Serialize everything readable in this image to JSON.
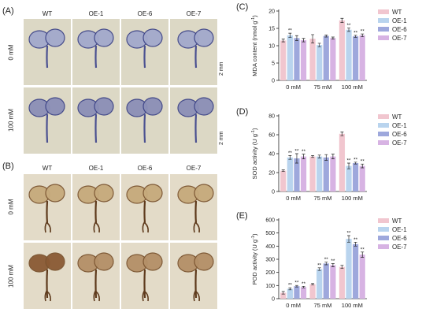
{
  "panels": {
    "A": {
      "label": "(A)",
      "columns": [
        "WT",
        "OE-1",
        "OE-6",
        "OE-7"
      ],
      "rows": [
        "0 mM",
        "100 mM"
      ],
      "scale": "2 mm",
      "stain": "blue"
    },
    "B": {
      "label": "(B)",
      "columns": [
        "WT",
        "OE-1",
        "OE-6",
        "OE-7"
      ],
      "rows": [
        "0 mM",
        "100 mM"
      ],
      "scale": "2 mm",
      "stain": "brown"
    }
  },
  "colors": {
    "WT": "#f1c6cf",
    "OE-1": "#b9d4ee",
    "OE-6": "#9ea8dc",
    "OE-7": "#d7b3e3"
  },
  "chart_data": [
    {
      "id": "C",
      "panel_label": "(C)",
      "type": "bar",
      "categories": [
        "0 mM",
        "75 mM",
        "100 mM"
      ],
      "ylabel": "MDA content (nmol g",
      "ylabel_sup": "-1",
      "ylabel_end": ")",
      "ylim": [
        0,
        20
      ],
      "yticks": [
        0,
        5,
        10,
        15,
        20
      ],
      "legend": "top-right",
      "series": [
        {
          "name": "WT",
          "values": [
            11.5,
            12.0,
            17.3
          ],
          "errors": [
            0.4,
            1.2,
            0.6
          ],
          "sig": [
            "",
            "",
            ""
          ]
        },
        {
          "name": "OE-1",
          "values": [
            13.0,
            10.2,
            14.6
          ],
          "errors": [
            0.6,
            0.5,
            0.5
          ],
          "sig": [
            "**",
            "",
            "**"
          ]
        },
        {
          "name": "OE-6",
          "values": [
            12.2,
            12.8,
            12.7
          ],
          "errors": [
            0.7,
            0.3,
            0.3
          ],
          "sig": [
            "",
            "",
            "**"
          ]
        },
        {
          "name": "OE-7",
          "values": [
            11.6,
            12.2,
            13.0
          ],
          "errors": [
            0.5,
            0.3,
            0.4
          ],
          "sig": [
            "",
            "",
            "**"
          ]
        }
      ]
    },
    {
      "id": "D",
      "panel_label": "(D)",
      "type": "bar",
      "categories": [
        "0 mM",
        "75 mM",
        "100 mM"
      ],
      "ylabel": "SOD activity (U g",
      "ylabel_sup": "-1",
      "ylabel_end": ")",
      "ylim": [
        0,
        80
      ],
      "yticks": [
        0,
        20,
        40,
        60,
        80
      ],
      "legend": "top-right",
      "series": [
        {
          "name": "WT",
          "values": [
            22,
            37,
            61
          ],
          "errors": [
            0.8,
            1.0,
            2.0
          ],
          "sig": [
            "",
            "",
            ""
          ]
        },
        {
          "name": "OE-1",
          "values": [
            36,
            37,
            27
          ],
          "errors": [
            2.0,
            1.5,
            3.0
          ],
          "sig": [
            "**",
            "",
            "**"
          ]
        },
        {
          "name": "OE-6",
          "values": [
            35,
            36,
            30
          ],
          "errors": [
            5.0,
            3.0,
            1.0
          ],
          "sig": [
            "**",
            "",
            "**"
          ]
        },
        {
          "name": "OE-7",
          "values": [
            37,
            37,
            27
          ],
          "errors": [
            2.5,
            2.5,
            2.0
          ],
          "sig": [
            "**",
            "",
            "**"
          ]
        }
      ]
    },
    {
      "id": "E",
      "panel_label": "(E)",
      "type": "bar",
      "categories": [
        "0 mM",
        "75 mM",
        "100 mM"
      ],
      "ylabel": "POD activity (U g",
      "ylabel_sup": "-1",
      "ylabel_end": ")",
      "ylim": [
        0,
        600
      ],
      "yticks": [
        0,
        100,
        200,
        300,
        400,
        500,
        600
      ],
      "legend": "top-right",
      "series": [
        {
          "name": "WT",
          "values": [
            45,
            110,
            242
          ],
          "errors": [
            10,
            6,
            12
          ],
          "sig": [
            "",
            "",
            ""
          ]
        },
        {
          "name": "OE-1",
          "values": [
            75,
            225,
            455
          ],
          "errors": [
            8,
            10,
            25
          ],
          "sig": [
            "**",
            "**",
            "**"
          ]
        },
        {
          "name": "OE-6",
          "values": [
            95,
            268,
            415
          ],
          "errors": [
            6,
            10,
            15
          ],
          "sig": [
            "**",
            "**",
            "**"
          ]
        },
        {
          "name": "OE-7",
          "values": [
            88,
            255,
            335
          ],
          "errors": [
            6,
            12,
            20
          ],
          "sig": [
            "**",
            "**",
            "**"
          ]
        }
      ]
    }
  ]
}
